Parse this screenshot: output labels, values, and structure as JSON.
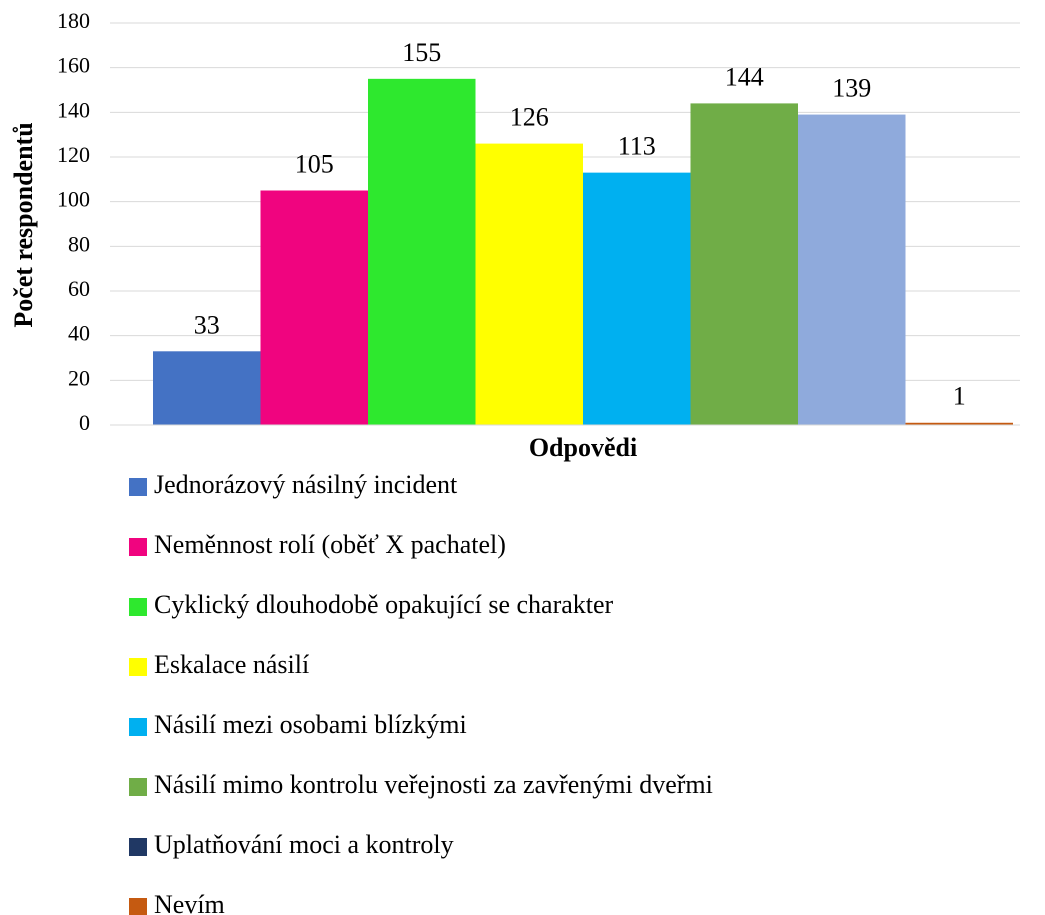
{
  "chart_data": {
    "type": "bar",
    "y_label": "Počet respondentů",
    "x_label": "Odpovědi",
    "ylim": [
      0,
      180
    ],
    "yticks": [
      0,
      20,
      40,
      60,
      80,
      100,
      120,
      140,
      160,
      180
    ],
    "grid": true,
    "series": [
      {
        "name": "Jednorázový násilný incident",
        "color": "#4472c4",
        "values": [
          33
        ]
      },
      {
        "name": "Neměnnost rolí (oběť X pachatel)",
        "color": "#f0047f",
        "values": [
          105
        ]
      },
      {
        "name": "Cyklický dlouhodobě opakující se charakter",
        "color": "#2ee82e",
        "values": [
          155
        ]
      },
      {
        "name": "Eskalace násilí",
        "color": "#ffff00",
        "values": [
          126
        ]
      },
      {
        "name": "Násilí mezi osobami blízkými",
        "color": "#00b0f0",
        "values": [
          113
        ]
      },
      {
        "name": "Násilí mimo kontrolu veřejnosti za zavřenými dveřmi",
        "color": "#70ad47",
        "values": [
          144
        ]
      },
      {
        "name": "Uplatňování moci a kontroly",
        "color": "#8faadc",
        "legend_color": "#203864",
        "values": [
          139
        ]
      },
      {
        "name": "Nevím",
        "color": "#c55a11",
        "values": [
          1
        ]
      }
    ]
  }
}
